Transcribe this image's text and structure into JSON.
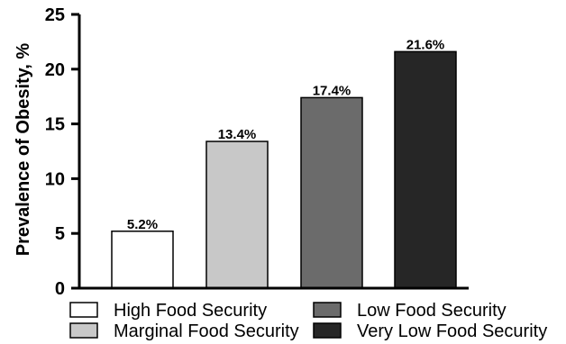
{
  "chart_data": {
    "type": "bar",
    "categories": [
      "High Food Security",
      "Marginal Food Security",
      "Low Food Security",
      "Very Low Food Security"
    ],
    "values": [
      5.2,
      13.4,
      17.4,
      21.6
    ],
    "data_labels": [
      "5.2%",
      "13.4%",
      "17.4%",
      "21.6%"
    ],
    "colors": [
      "#ffffff",
      "#c8c8c8",
      "#6b6b6b",
      "#262626"
    ],
    "title": "",
    "xlabel": "",
    "ylabel": "Prevalence of Obesity, %",
    "ylim": [
      0,
      25
    ],
    "yticks": [
      "0",
      "5",
      "10",
      "15",
      "20",
      "25"
    ],
    "grid": false,
    "legend": {
      "placement": "bottom",
      "entries": [
        "High Food Security",
        "Low Food Security",
        "Marginal Food Security",
        "Very Low Food Security"
      ]
    }
  }
}
